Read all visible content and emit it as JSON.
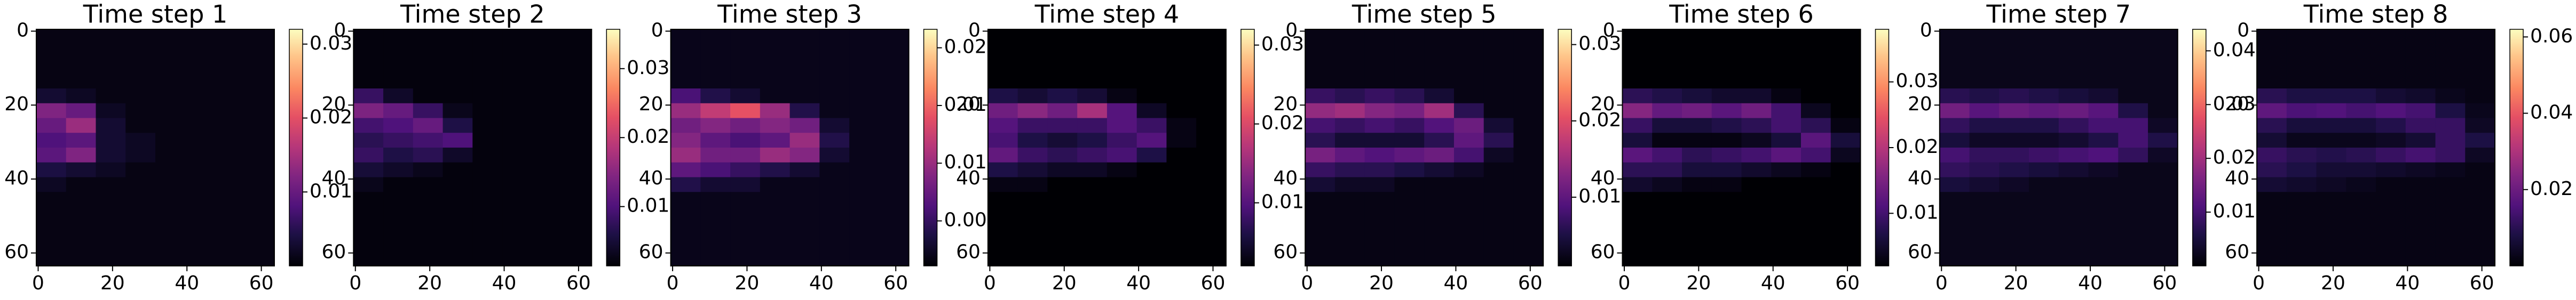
{
  "chart_data": [
    {
      "type": "heatmap",
      "title": "Time step 1",
      "colormap": "magma",
      "xlim": [
        -0.5,
        63.5
      ],
      "ylim": [
        -0.5,
        63.5
      ],
      "y_inverted": true,
      "xticks": [
        0,
        20,
        40,
        60
      ],
      "yticks": [
        0,
        20,
        40,
        60
      ],
      "xbins": [
        0,
        8,
        16,
        24,
        32,
        40,
        48,
        56,
        64
      ],
      "ybins": [
        0,
        16,
        20,
        24,
        28,
        32,
        36,
        40,
        44,
        64
      ],
      "values": [
        [
          0.001,
          0.001,
          0.001,
          0.001,
          0.001,
          0.001,
          0.001,
          0.001
        ],
        [
          0.003,
          0.002,
          0.001,
          0.001,
          0.001,
          0.001,
          0.001,
          0.001
        ],
        [
          0.012,
          0.01,
          0.002,
          0.001,
          0.001,
          0.001,
          0.001,
          0.001
        ],
        [
          0.01,
          0.014,
          0.003,
          0.001,
          0.001,
          0.001,
          0.001,
          0.001
        ],
        [
          0.008,
          0.009,
          0.003,
          0.002,
          0.001,
          0.001,
          0.001,
          0.001
        ],
        [
          0.009,
          0.012,
          0.003,
          0.002,
          0.001,
          0.001,
          0.001,
          0.001
        ],
        [
          0.004,
          0.003,
          0.002,
          0.001,
          0.001,
          0.001,
          0.001,
          0.001
        ],
        [
          0.002,
          0.001,
          0.001,
          0.001,
          0.001,
          0.001,
          0.001,
          0.001
        ],
        [
          0.001,
          0.001,
          0.001,
          0.001,
          0.001,
          0.001,
          0.001,
          0.001
        ]
      ],
      "clim": [
        0,
        0.032
      ],
      "cticks": [
        0.01,
        0.02,
        0.03
      ]
    },
    {
      "type": "heatmap",
      "title": "Time step 2",
      "colormap": "magma",
      "xlim": [
        -0.5,
        63.5
      ],
      "ylim": [
        -0.5,
        63.5
      ],
      "y_inverted": true,
      "xticks": [
        0,
        20,
        40,
        60
      ],
      "yticks": [
        0,
        20,
        40,
        60
      ],
      "xbins": [
        0,
        8,
        16,
        24,
        32,
        40,
        48,
        56,
        64
      ],
      "ybins": [
        0,
        16,
        20,
        24,
        28,
        32,
        36,
        40,
        44,
        64
      ],
      "values": [
        [
          0.002,
          0.002,
          0.002,
          0.002,
          0.002,
          0.002,
          0.002,
          0.002
        ],
        [
          0.008,
          0.004,
          0.002,
          0.002,
          0.002,
          0.002,
          0.002,
          0.002
        ],
        [
          0.014,
          0.012,
          0.008,
          0.003,
          0.002,
          0.002,
          0.002,
          0.002
        ],
        [
          0.009,
          0.01,
          0.012,
          0.006,
          0.002,
          0.002,
          0.002,
          0.002
        ],
        [
          0.007,
          0.008,
          0.009,
          0.01,
          0.002,
          0.002,
          0.002,
          0.002
        ],
        [
          0.008,
          0.006,
          0.007,
          0.004,
          0.002,
          0.002,
          0.002,
          0.002
        ],
        [
          0.005,
          0.004,
          0.003,
          0.002,
          0.002,
          0.002,
          0.002,
          0.002
        ],
        [
          0.003,
          0.002,
          0.002,
          0.002,
          0.002,
          0.002,
          0.002,
          0.002
        ],
        [
          0.002,
          0.002,
          0.002,
          0.002,
          0.002,
          0.002,
          0.002,
          0.002
        ]
      ],
      "clim": [
        0.0014,
        0.0357
      ],
      "cticks": [
        0.01,
        0.02,
        0.03
      ]
    },
    {
      "type": "heatmap",
      "title": "Time step 3",
      "colormap": "magma",
      "xlim": [
        -0.5,
        63.5
      ],
      "ylim": [
        -0.5,
        63.5
      ],
      "y_inverted": true,
      "xticks": [
        0,
        20,
        40,
        60
      ],
      "yticks": [
        0,
        20,
        40,
        60
      ],
      "xbins": [
        0,
        8,
        16,
        24,
        32,
        40,
        48,
        56,
        64
      ],
      "ybins": [
        0,
        16,
        20,
        24,
        28,
        32,
        36,
        40,
        44,
        64
      ],
      "values": [
        [
          0.002,
          0.002,
          0.002,
          0.002,
          0.002,
          0.002,
          0.002,
          0.002
        ],
        [
          0.006,
          0.004,
          0.003,
          0.002,
          0.002,
          0.002,
          0.002,
          0.002
        ],
        [
          0.01,
          0.012,
          0.014,
          0.01,
          0.004,
          0.002,
          0.002,
          0.002
        ],
        [
          0.008,
          0.009,
          0.008,
          0.009,
          0.008,
          0.003,
          0.002,
          0.002
        ],
        [
          0.009,
          0.007,
          0.006,
          0.007,
          0.01,
          0.004,
          0.002,
          0.002
        ],
        [
          0.01,
          0.008,
          0.008,
          0.01,
          0.009,
          0.003,
          0.002,
          0.002
        ],
        [
          0.007,
          0.006,
          0.005,
          0.004,
          0.003,
          0.002,
          0.002,
          0.002
        ],
        [
          0.004,
          0.003,
          0.003,
          0.002,
          0.002,
          0.002,
          0.002,
          0.002
        ],
        [
          0.002,
          0.002,
          0.002,
          0.002,
          0.002,
          0.002,
          0.002,
          0.002
        ]
      ],
      "clim": [
        0.0011,
        0.0216
      ],
      "cticks": [
        {
          "value": 0.005,
          "label": "0.005"
        },
        {
          "value": 0.01,
          "label": "0.010"
        },
        0.015,
        {
          "value": 0.02,
          "label": "0.020"
        }
      ]
    },
    {
      "type": "heatmap",
      "title": "Time step 4",
      "colormap": "magma",
      "xlim": [
        -0.5,
        63.5
      ],
      "ylim": [
        -0.5,
        63.5
      ],
      "y_inverted": true,
      "xticks": [
        0,
        20,
        40,
        60
      ],
      "yticks": [
        0,
        20,
        40,
        60
      ],
      "xbins": [
        0,
        8,
        16,
        24,
        32,
        40,
        48,
        56,
        64
      ],
      "ybins": [
        0,
        16,
        20,
        24,
        28,
        32,
        36,
        40,
        44,
        64
      ],
      "values": [
        [
          0.002,
          0.002,
          0.002,
          0.002,
          0.002,
          0.002,
          0.002,
          0.002
        ],
        [
          0.006,
          0.005,
          0.006,
          0.005,
          0.003,
          0.002,
          0.002,
          0.002
        ],
        [
          0.012,
          0.014,
          0.012,
          0.016,
          0.01,
          0.004,
          0.002,
          0.002
        ],
        [
          0.01,
          0.008,
          0.008,
          0.008,
          0.01,
          0.008,
          0.003,
          0.002
        ],
        [
          0.009,
          0.006,
          0.005,
          0.006,
          0.008,
          0.01,
          0.003,
          0.002
        ],
        [
          0.011,
          0.008,
          0.007,
          0.008,
          0.009,
          0.006,
          0.002,
          0.002
        ],
        [
          0.006,
          0.005,
          0.004,
          0.004,
          0.003,
          0.002,
          0.002,
          0.002
        ],
        [
          0.003,
          0.003,
          0.002,
          0.002,
          0.002,
          0.002,
          0.002,
          0.002
        ],
        [
          0.002,
          0.002,
          0.002,
          0.002,
          0.002,
          0.002,
          0.002,
          0.002
        ]
      ],
      "clim": [
        0.002,
        0.032
      ],
      "cticks": [
        0.01,
        0.02,
        0.03
      ]
    },
    {
      "type": "heatmap",
      "title": "Time step 5",
      "colormap": "magma",
      "xlim": [
        -0.5,
        63.5
      ],
      "ylim": [
        -0.5,
        63.5
      ],
      "y_inverted": true,
      "xticks": [
        0,
        20,
        40,
        60
      ],
      "yticks": [
        0,
        20,
        40,
        60
      ],
      "xbins": [
        0,
        8,
        16,
        24,
        32,
        40,
        48,
        56,
        64
      ],
      "ybins": [
        0,
        16,
        20,
        24,
        28,
        32,
        36,
        40,
        44,
        64
      ],
      "values": [
        [
          0.002,
          0.002,
          0.002,
          0.002,
          0.002,
          0.002,
          0.002,
          0.002
        ],
        [
          0.007,
          0.006,
          0.007,
          0.006,
          0.004,
          0.002,
          0.002,
          0.002
        ],
        [
          0.014,
          0.015,
          0.013,
          0.012,
          0.015,
          0.006,
          0.002,
          0.002
        ],
        [
          0.008,
          0.007,
          0.008,
          0.007,
          0.009,
          0.011,
          0.004,
          0.002
        ],
        [
          0.006,
          0.004,
          0.004,
          0.004,
          0.006,
          0.01,
          0.006,
          0.002
        ],
        [
          0.012,
          0.01,
          0.009,
          0.01,
          0.011,
          0.008,
          0.003,
          0.002
        ],
        [
          0.007,
          0.006,
          0.006,
          0.005,
          0.004,
          0.003,
          0.002,
          0.002
        ],
        [
          0.004,
          0.003,
          0.003,
          0.002,
          0.002,
          0.002,
          0.002,
          0.002
        ],
        [
          0.002,
          0.002,
          0.002,
          0.002,
          0.002,
          0.002,
          0.002,
          0.002
        ]
      ],
      "clim": [
        0.001,
        0.032
      ],
      "cticks": [
        0.01,
        0.02,
        0.03
      ]
    },
    {
      "type": "heatmap",
      "title": "Time step 6",
      "colormap": "magma",
      "xlim": [
        -0.5,
        63.5
      ],
      "ylim": [
        -0.5,
        63.5
      ],
      "y_inverted": true,
      "xticks": [
        0,
        20,
        40,
        60
      ],
      "yticks": [
        0,
        20,
        40,
        60
      ],
      "xbins": [
        0,
        8,
        16,
        24,
        32,
        40,
        48,
        56,
        64
      ],
      "ybins": [
        0,
        16,
        20,
        24,
        28,
        32,
        36,
        40,
        44,
        64
      ],
      "values": [
        [
          0.002,
          0.002,
          0.002,
          0.002,
          0.002,
          0.002,
          0.002,
          0.002
        ],
        [
          0.008,
          0.007,
          0.006,
          0.005,
          0.005,
          0.003,
          0.002,
          0.002
        ],
        [
          0.016,
          0.013,
          0.014,
          0.012,
          0.014,
          0.01,
          0.004,
          0.002
        ],
        [
          0.009,
          0.006,
          0.006,
          0.007,
          0.008,
          0.01,
          0.008,
          0.003
        ],
        [
          0.006,
          0.003,
          0.003,
          0.003,
          0.004,
          0.006,
          0.012,
          0.006
        ],
        [
          0.012,
          0.01,
          0.008,
          0.009,
          0.01,
          0.012,
          0.01,
          0.004
        ],
        [
          0.008,
          0.008,
          0.006,
          0.006,
          0.005,
          0.004,
          0.003,
          0.002
        ],
        [
          0.005,
          0.004,
          0.003,
          0.003,
          0.002,
          0.002,
          0.002,
          0.002
        ],
        [
          0.002,
          0.002,
          0.002,
          0.002,
          0.002,
          0.002,
          0.002,
          0.002
        ]
      ],
      "clim": [
        0.002,
        0.038
      ],
      "cticks": [
        0.01,
        0.02,
        0.03
      ]
    },
    {
      "type": "heatmap",
      "title": "Time step 7",
      "colormap": "magma",
      "xlim": [
        -0.5,
        63.5
      ],
      "ylim": [
        -0.5,
        63.5
      ],
      "y_inverted": true,
      "xticks": [
        0,
        20,
        40,
        60
      ],
      "yticks": [
        0,
        20,
        40,
        60
      ],
      "xbins": [
        0,
        8,
        16,
        24,
        32,
        40,
        48,
        56,
        64
      ],
      "ybins": [
        0,
        16,
        20,
        24,
        28,
        32,
        36,
        40,
        44,
        64
      ],
      "values": [
        [
          0.002,
          0.002,
          0.002,
          0.002,
          0.002,
          0.002,
          0.002,
          0.002
        ],
        [
          0.007,
          0.006,
          0.007,
          0.006,
          0.005,
          0.004,
          0.002,
          0.002
        ],
        [
          0.015,
          0.012,
          0.014,
          0.013,
          0.014,
          0.012,
          0.006,
          0.002
        ],
        [
          0.008,
          0.006,
          0.006,
          0.006,
          0.008,
          0.01,
          0.01,
          0.003
        ],
        [
          0.005,
          0.003,
          0.003,
          0.003,
          0.004,
          0.006,
          0.01,
          0.006
        ],
        [
          0.01,
          0.008,
          0.008,
          0.009,
          0.01,
          0.011,
          0.008,
          0.003
        ],
        [
          0.008,
          0.007,
          0.006,
          0.005,
          0.004,
          0.003,
          0.002,
          0.002
        ],
        [
          0.005,
          0.004,
          0.003,
          0.002,
          0.002,
          0.002,
          0.002,
          0.002
        ],
        [
          0.002,
          0.002,
          0.002,
          0.002,
          0.002,
          0.002,
          0.002,
          0.002
        ]
      ],
      "clim": [
        0,
        0.044
      ],
      "cticks": [
        0.01,
        0.02,
        0.03,
        0.04
      ]
    },
    {
      "type": "heatmap",
      "title": "Time step 8",
      "colormap": "magma",
      "xlim": [
        -0.5,
        63.5
      ],
      "ylim": [
        -0.5,
        63.5
      ],
      "y_inverted": true,
      "xticks": [
        0,
        20,
        40,
        60
      ],
      "yticks": [
        0,
        20,
        40,
        60
      ],
      "xbins": [
        0,
        8,
        16,
        24,
        32,
        40,
        48,
        56,
        64
      ],
      "ybins": [
        0,
        16,
        20,
        24,
        28,
        32,
        36,
        40,
        44,
        64
      ],
      "values": [
        [
          0.002,
          0.002,
          0.002,
          0.002,
          0.002,
          0.002,
          0.002,
          0.002
        ],
        [
          0.01,
          0.008,
          0.008,
          0.008,
          0.006,
          0.005,
          0.003,
          0.002
        ],
        [
          0.018,
          0.015,
          0.016,
          0.014,
          0.016,
          0.014,
          0.008,
          0.003
        ],
        [
          0.01,
          0.007,
          0.007,
          0.007,
          0.009,
          0.012,
          0.012,
          0.004
        ],
        [
          0.006,
          0.003,
          0.003,
          0.003,
          0.004,
          0.006,
          0.012,
          0.008
        ],
        [
          0.012,
          0.01,
          0.009,
          0.01,
          0.012,
          0.014,
          0.012,
          0.004
        ],
        [
          0.01,
          0.008,
          0.006,
          0.006,
          0.005,
          0.004,
          0.003,
          0.002
        ],
        [
          0.006,
          0.005,
          0.004,
          0.003,
          0.002,
          0.002,
          0.002,
          0.002
        ],
        [
          0.002,
          0.002,
          0.002,
          0.002,
          0.002,
          0.002,
          0.002,
          0.002
        ]
      ],
      "clim": [
        0,
        0.062
      ],
      "cticks": [
        0.02,
        0.04,
        0.06
      ]
    }
  ]
}
